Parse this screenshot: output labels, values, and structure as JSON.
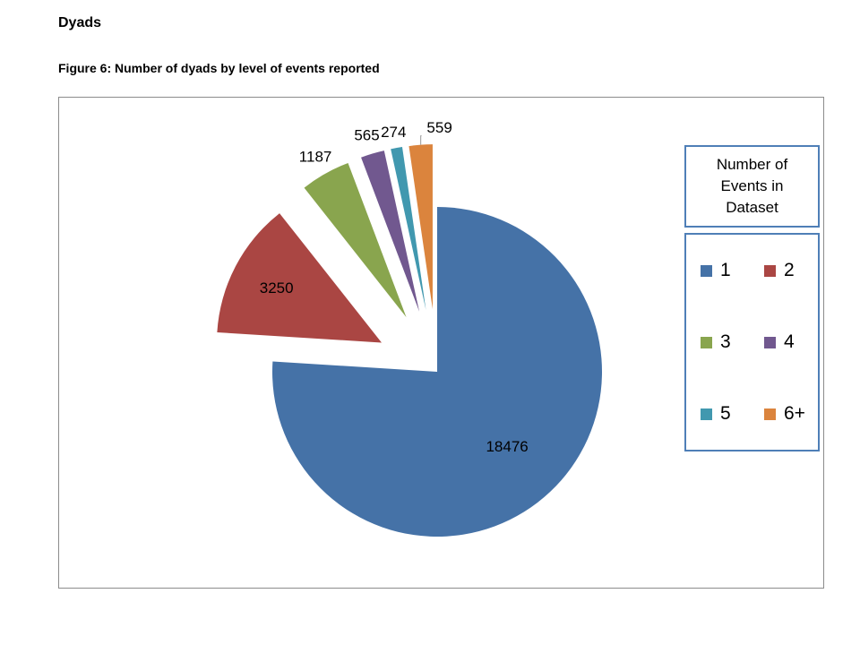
{
  "page": {
    "heading": "Dyads",
    "caption": "Figure 6: Number of dyads by level of events reported"
  },
  "legend": {
    "title_lines": [
      "Number of",
      "Events in",
      "Dataset"
    ]
  },
  "chart_data": {
    "type": "pie",
    "title": "",
    "exploded": true,
    "legend_position": "right",
    "slices": [
      {
        "label": "1",
        "value": 18476,
        "color": "#4572a7"
      },
      {
        "label": "2",
        "value": 3250,
        "color": "#aa4643"
      },
      {
        "label": "3",
        "value": 1187,
        "color": "#89a54e"
      },
      {
        "label": "4",
        "value": 565,
        "color": "#71588f"
      },
      {
        "label": "5",
        "value": 274,
        "color": "#4198af"
      },
      {
        "label": "6+",
        "value": 559,
        "color": "#db843d"
      }
    ],
    "data_labels": [
      "18476",
      "3250",
      "1187",
      "565",
      "274",
      "559"
    ]
  }
}
